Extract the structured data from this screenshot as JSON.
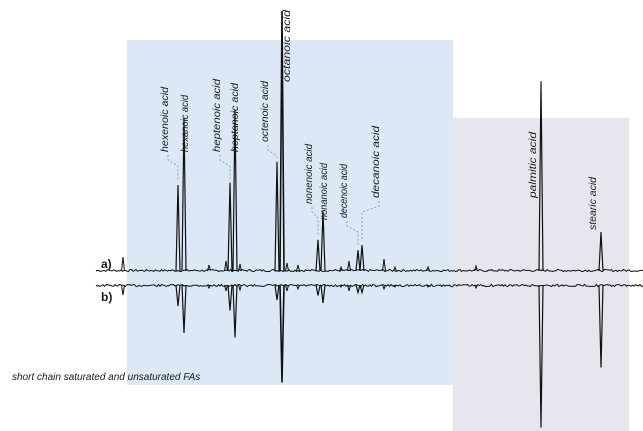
{
  "chart_data": {
    "type": "line",
    "title": "",
    "xlabel": "",
    "ylabel": "",
    "grid": false,
    "legend": "none",
    "colors": {
      "short_chain_region": "#dde8f6",
      "long_chain_region": "#e9e5ee",
      "trace": "#111111",
      "connector": "#6d93c7"
    },
    "series": [
      {
        "name": "a)",
        "direction": "up"
      },
      {
        "name": "b)",
        "direction": "down"
      }
    ],
    "regions": [
      {
        "name": "short_chain",
        "label": "short chain saturated and unsaturated FAs"
      },
      {
        "name": "long_chain",
        "label": ""
      }
    ],
    "peaks": [
      {
        "label": "hexenoic acid",
        "a": 0.33,
        "b": 0.14
      },
      {
        "label": "hexanoic acid",
        "a": 0.59,
        "b": 0.32
      },
      {
        "label": "heptenoic acid",
        "a": 0.34,
        "b": 0.17
      },
      {
        "label": "heptanoic acid",
        "a": 0.62,
        "b": 0.35
      },
      {
        "label": "octenoic acid",
        "a": 0.42,
        "b": 0.1
      },
      {
        "label": "octanoic acid",
        "a": 1.0,
        "b": 0.65
      },
      {
        "label": "nonenoic acid",
        "a": 0.12,
        "b": 0.07
      },
      {
        "label": "nonanoic acid",
        "a": 0.23,
        "b": 0.12
      },
      {
        "label": "decenoic acid",
        "a": 0.08,
        "b": 0.05
      },
      {
        "label": "decanoic acid",
        "a": 0.1,
        "b": 0.05
      },
      {
        "label": "palmitic acid",
        "a": 0.73,
        "b": 0.95
      },
      {
        "label": "stearic acid",
        "a": 0.15,
        "b": 0.55
      }
    ]
  }
}
